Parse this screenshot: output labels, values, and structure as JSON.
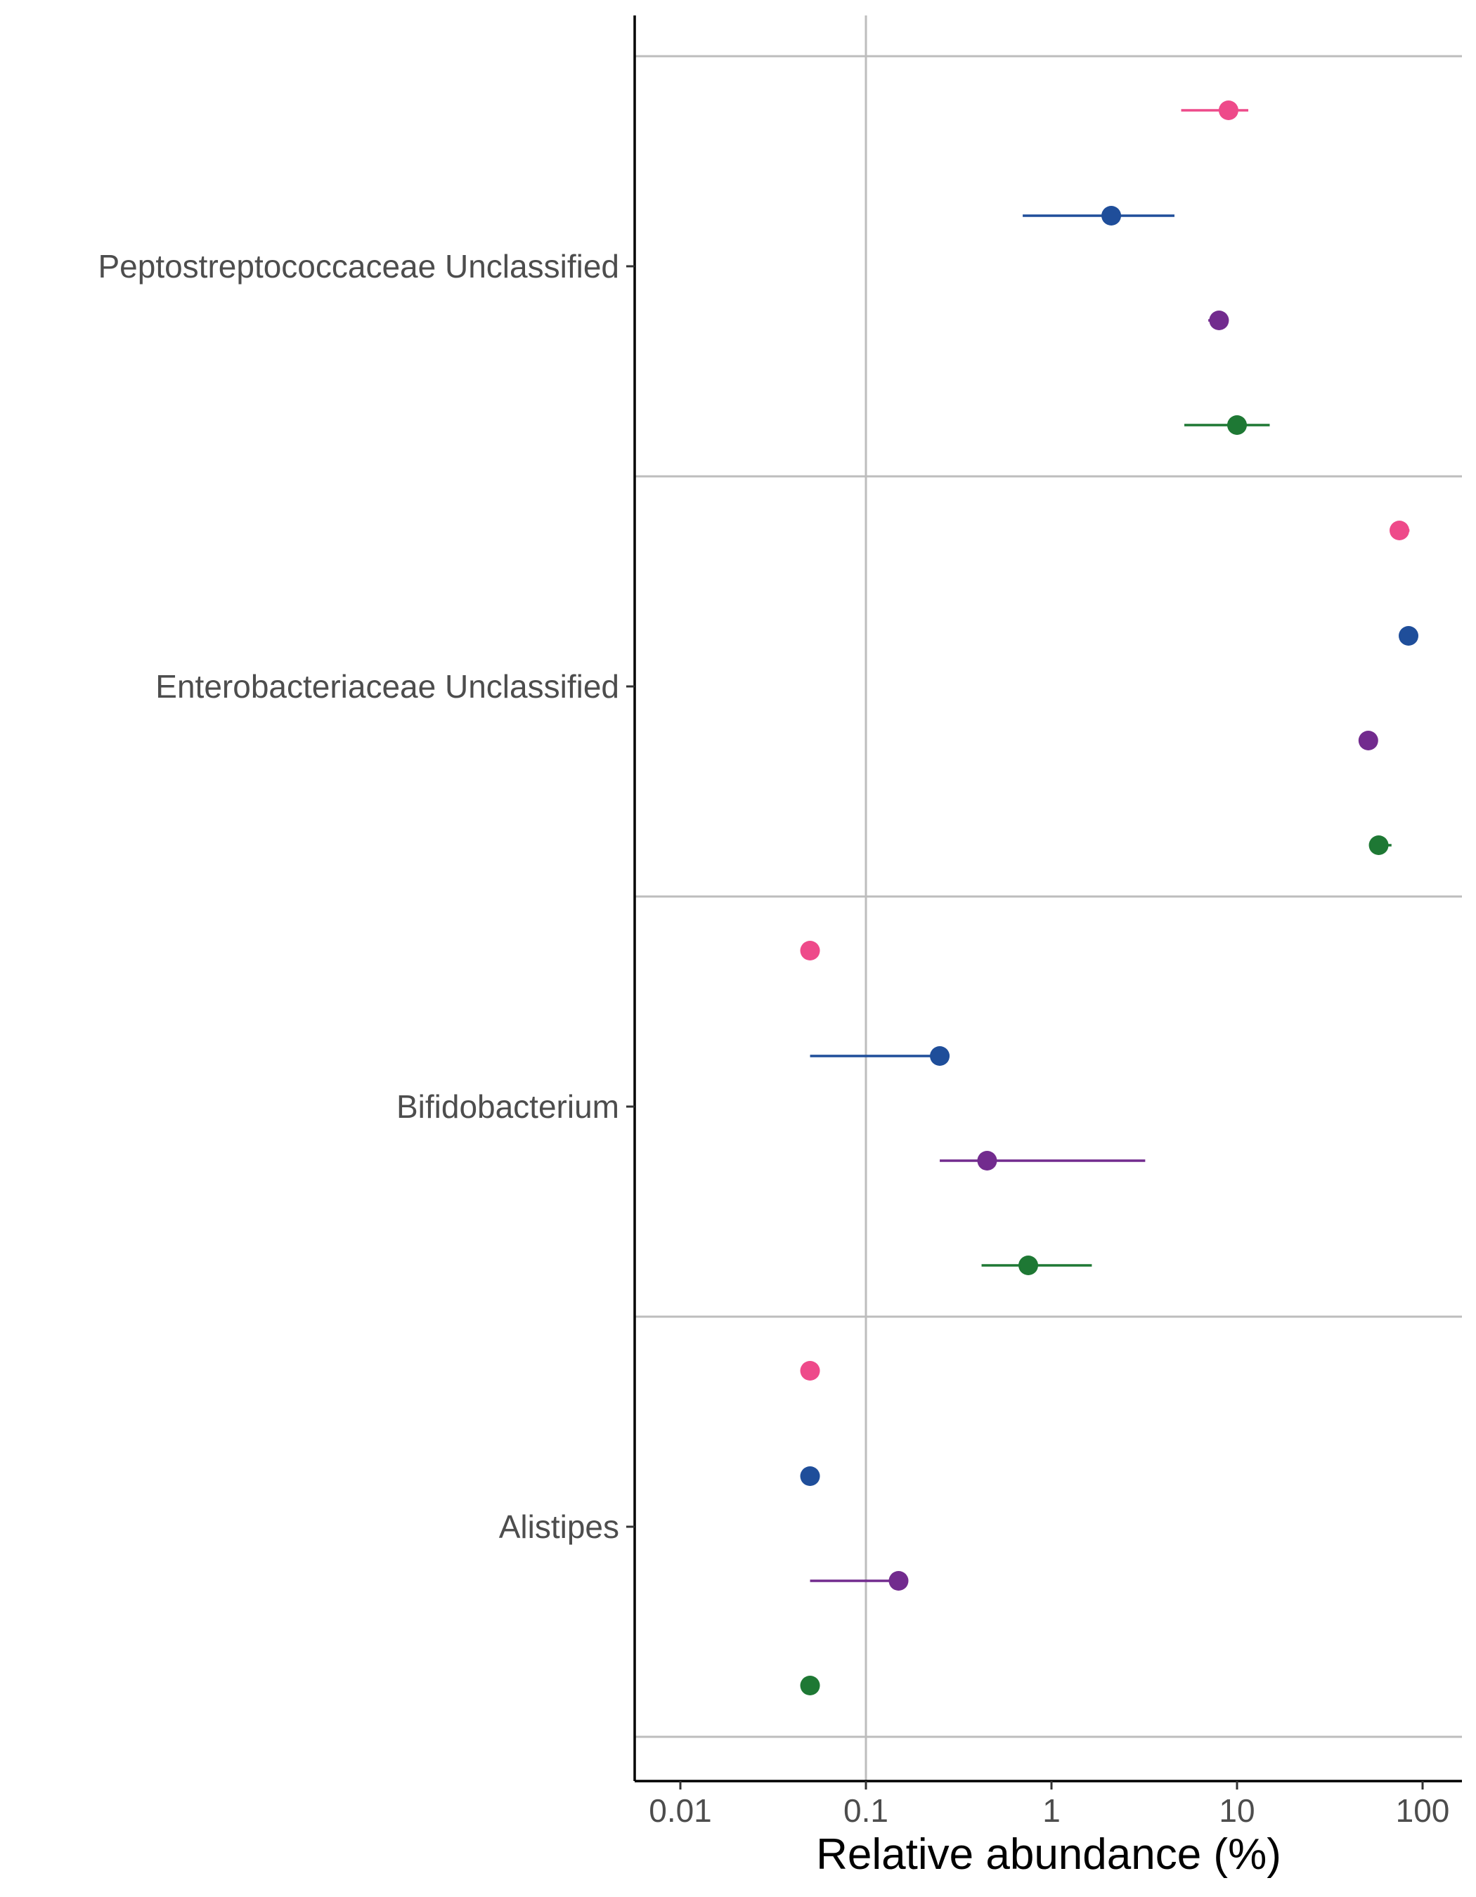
{
  "chart_data": {
    "type": "scatter",
    "xlabel": "Relative abundance (%)",
    "x_scale": "log10",
    "xlim": [
      0.006,
      150
    ],
    "x_ticks": [
      {
        "value": 0.01,
        "label": "0.01"
      },
      {
        "value": 0.1,
        "label": "0.1"
      },
      {
        "value": 1,
        "label": "1"
      },
      {
        "value": 10,
        "label": "10"
      },
      {
        "value": 100,
        "label": "100"
      }
    ],
    "grid": "x at 0.1; horizontal separators between categories",
    "categories": [
      "Peptostreptococcaceae Unclassified",
      "Enterobacteriaceae Unclassified",
      "Bifidobacterium",
      "Alistipes"
    ],
    "series": [
      {
        "color": "#EE4A8A",
        "points": [
          {
            "category": "Peptostreptococcaceae Unclassified",
            "value": 9,
            "low": 5,
            "high": 11.5
          },
          {
            "category": "Enterobacteriaceae Unclassified",
            "value": 75,
            "low": 68,
            "high": 85
          },
          {
            "category": "Bifidobacterium",
            "value": 0.05,
            "low": 0.05,
            "high": 0.05
          },
          {
            "category": "Alistipes",
            "value": 0.05,
            "low": 0.05,
            "high": 0.05
          }
        ]
      },
      {
        "color": "#1F4E9A",
        "points": [
          {
            "category": "Peptostreptococcaceae Unclassified",
            "value": 2.1,
            "low": 0.7,
            "high": 4.6
          },
          {
            "category": "Enterobacteriaceae Unclassified",
            "value": 84,
            "low": 80,
            "high": 88
          },
          {
            "category": "Bifidobacterium",
            "value": 0.25,
            "low": 0.05,
            "high": 0.25
          },
          {
            "category": "Alistipes",
            "value": 0.05,
            "low": 0.05,
            "high": 0.05
          }
        ]
      },
      {
        "color": "#722B8E",
        "points": [
          {
            "category": "Peptostreptococcaceae Unclassified",
            "value": 8,
            "low": 7,
            "high": 8.5
          },
          {
            "category": "Enterobacteriaceae Unclassified",
            "value": 51,
            "low": 48,
            "high": 54
          },
          {
            "category": "Bifidobacterium",
            "value": 0.45,
            "low": 0.25,
            "high": 3.2
          },
          {
            "category": "Alistipes",
            "value": 0.15,
            "low": 0.05,
            "high": 0.15
          }
        ]
      },
      {
        "color": "#1E7834",
        "points": [
          {
            "category": "Peptostreptococcaceae Unclassified",
            "value": 10,
            "low": 5.2,
            "high": 15
          },
          {
            "category": "Enterobacteriaceae Unclassified",
            "value": 58,
            "low": 52,
            "high": 68
          },
          {
            "category": "Bifidobacterium",
            "value": 0.75,
            "low": 0.42,
            "high": 1.65
          },
          {
            "category": "Alistipes",
            "value": 0.05,
            "low": 0.05,
            "high": 0.05
          }
        ]
      }
    ]
  }
}
